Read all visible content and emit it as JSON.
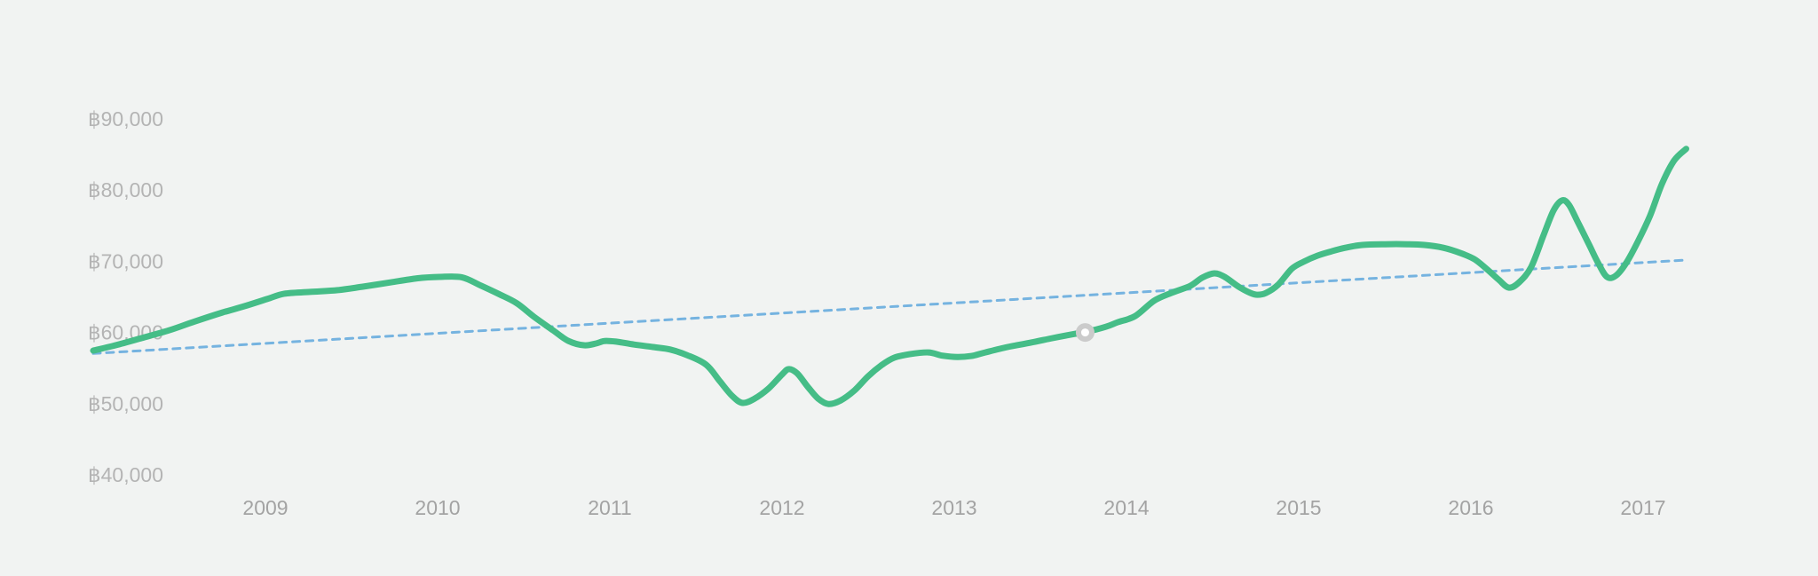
{
  "page": {
    "background_color": "#f1f3f2"
  },
  "chart_data": {
    "type": "line",
    "title": "",
    "xlabel": "",
    "ylabel": "",
    "currency_symbol": "฿",
    "grid": false,
    "legend": null,
    "colors": {
      "background": "#f1f3f2",
      "value_line": "#45bd87",
      "trend_line": "#75b3e0",
      "marker_ring": "#cbcbcb",
      "marker_fill": "#ffffff",
      "y_label_text": "#b4b4b4",
      "x_label_text": "#a3a3a3"
    },
    "y_ticks": [
      {
        "label": "฿90,000",
        "value": 90000
      },
      {
        "label": "฿80,000",
        "value": 80000
      },
      {
        "label": "฿70,000",
        "value": 70000
      },
      {
        "label": "฿60,000",
        "value": 60000
      },
      {
        "label": "฿50,000",
        "value": 50000
      },
      {
        "label": "฿40,000",
        "value": 40000
      }
    ],
    "x_ticks": [
      {
        "label": "2009",
        "value": 2009
      },
      {
        "label": "2010",
        "value": 2010
      },
      {
        "label": "2011",
        "value": 2011
      },
      {
        "label": "2012",
        "value": 2012
      },
      {
        "label": "2013",
        "value": 2013
      },
      {
        "label": "2014",
        "value": 2014
      },
      {
        "label": "2015",
        "value": 2015
      },
      {
        "label": "2016",
        "value": 2016
      },
      {
        "label": "2017",
        "value": 2017
      }
    ],
    "x_range": [
      2008.0,
      2017.35
    ],
    "y_range": [
      40000,
      90000
    ],
    "series": [
      {
        "name": "value-line",
        "style": "smooth",
        "color_key": "value_line",
        "stroke_width": 7,
        "points": [
          [
            2008.0,
            57450
          ],
          [
            2008.13,
            58200
          ],
          [
            2008.28,
            59200
          ],
          [
            2008.44,
            60300
          ],
          [
            2008.59,
            61550
          ],
          [
            2008.75,
            62800
          ],
          [
            2008.88,
            63700
          ],
          [
            2009.01,
            64700
          ],
          [
            2009.11,
            65450
          ],
          [
            2009.26,
            65700
          ],
          [
            2009.42,
            65950
          ],
          [
            2009.57,
            66450
          ],
          [
            2009.73,
            67050
          ],
          [
            2009.88,
            67600
          ],
          [
            2010.01,
            67800
          ],
          [
            2010.14,
            67750
          ],
          [
            2010.25,
            66600
          ],
          [
            2010.36,
            65350
          ],
          [
            2010.46,
            64100
          ],
          [
            2010.56,
            62200
          ],
          [
            2010.67,
            60300
          ],
          [
            2010.76,
            58800
          ],
          [
            2010.85,
            58200
          ],
          [
            2010.92,
            58450
          ],
          [
            2010.97,
            58800
          ],
          [
            2011.04,
            58700
          ],
          [
            2011.14,
            58300
          ],
          [
            2011.25,
            57950
          ],
          [
            2011.35,
            57600
          ],
          [
            2011.45,
            56800
          ],
          [
            2011.56,
            55450
          ],
          [
            2011.64,
            53100
          ],
          [
            2011.71,
            51100
          ],
          [
            2011.77,
            50100
          ],
          [
            2011.84,
            50700
          ],
          [
            2011.92,
            52100
          ],
          [
            2012.0,
            54100
          ],
          [
            2012.04,
            54850
          ],
          [
            2012.09,
            54200
          ],
          [
            2012.15,
            52350
          ],
          [
            2012.21,
            50700
          ],
          [
            2012.27,
            49950
          ],
          [
            2012.34,
            50450
          ],
          [
            2012.42,
            51850
          ],
          [
            2012.5,
            53850
          ],
          [
            2012.58,
            55450
          ],
          [
            2012.65,
            56450
          ],
          [
            2012.74,
            56950
          ],
          [
            2012.85,
            57200
          ],
          [
            2012.93,
            56750
          ],
          [
            2013.02,
            56550
          ],
          [
            2013.1,
            56700
          ],
          [
            2013.18,
            57200
          ],
          [
            2013.31,
            57950
          ],
          [
            2013.44,
            58550
          ],
          [
            2013.57,
            59200
          ],
          [
            2013.7,
            59800
          ],
          [
            2013.76,
            60050
          ],
          [
            2013.88,
            60800
          ],
          [
            2013.95,
            61450
          ],
          [
            2014.05,
            62300
          ],
          [
            2014.16,
            64450
          ],
          [
            2014.26,
            65550
          ],
          [
            2014.37,
            66550
          ],
          [
            2014.44,
            67700
          ],
          [
            2014.51,
            68300
          ],
          [
            2014.57,
            67800
          ],
          [
            2014.65,
            66450
          ],
          [
            2014.72,
            65550
          ],
          [
            2014.76,
            65300
          ],
          [
            2014.81,
            65550
          ],
          [
            2014.88,
            66700
          ],
          [
            2014.96,
            68950
          ],
          [
            2015.03,
            69950
          ],
          [
            2015.11,
            70800
          ],
          [
            2015.19,
            71400
          ],
          [
            2015.27,
            71900
          ],
          [
            2015.37,
            72300
          ],
          [
            2015.5,
            72400
          ],
          [
            2015.63,
            72400
          ],
          [
            2015.73,
            72300
          ],
          [
            2015.84,
            71900
          ],
          [
            2015.94,
            71150
          ],
          [
            2016.02,
            70300
          ],
          [
            2016.09,
            68950
          ],
          [
            2016.16,
            67450
          ],
          [
            2016.22,
            66300
          ],
          [
            2016.28,
            67050
          ],
          [
            2016.35,
            69200
          ],
          [
            2016.42,
            73550
          ],
          [
            2016.48,
            77150
          ],
          [
            2016.53,
            78550
          ],
          [
            2016.57,
            77900
          ],
          [
            2016.62,
            75550
          ],
          [
            2016.69,
            72150
          ],
          [
            2016.74,
            69700
          ],
          [
            2016.79,
            67800
          ],
          [
            2016.84,
            67950
          ],
          [
            2016.9,
            69700
          ],
          [
            2016.97,
            72800
          ],
          [
            2017.04,
            76400
          ],
          [
            2017.11,
            80900
          ],
          [
            2017.18,
            84150
          ],
          [
            2017.25,
            85800
          ]
        ]
      },
      {
        "name": "trend-line",
        "style": "dashed",
        "color_key": "trend_line",
        "stroke_width": 3,
        "dash": [
          8,
          7
        ],
        "points": [
          [
            2008.0,
            57050
          ],
          [
            2017.23,
            70150
          ]
        ]
      }
    ],
    "marker": {
      "x": 2013.76,
      "y": 60000
    }
  }
}
